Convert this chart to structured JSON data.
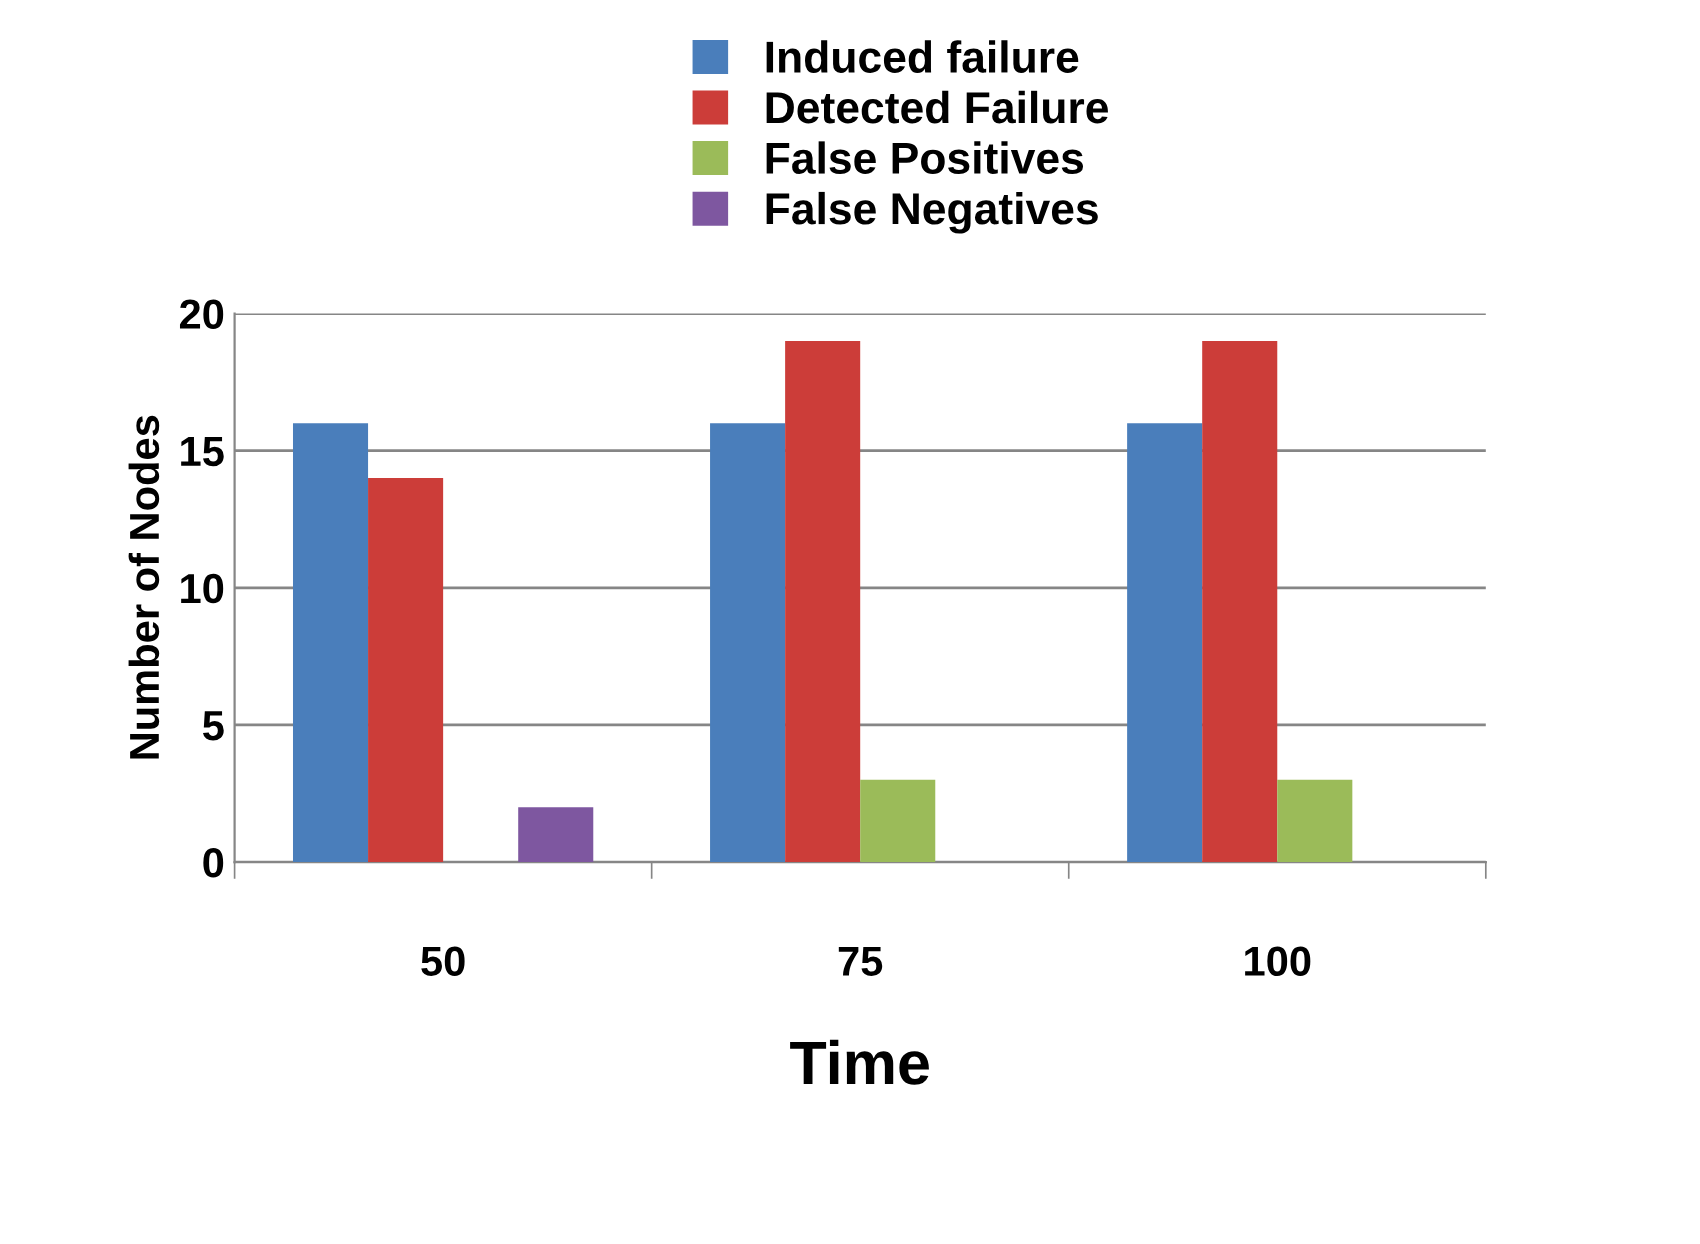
{
  "chart_data": {
    "type": "bar",
    "xlabel": "Time",
    "ylabel": "Number of Nodes",
    "categories": [
      "50",
      "75",
      "100"
    ],
    "series": [
      {
        "name": "Induced failure",
        "color": "#4a7ebb",
        "values": [
          16,
          16,
          16
        ]
      },
      {
        "name": "Detected Failure",
        "color": "#cc3d39",
        "values": [
          14,
          19,
          19
        ]
      },
      {
        "name": "False Positives",
        "color": "#9bbb59",
        "values": [
          0,
          3,
          3
        ]
      },
      {
        "name": "False Negatives",
        "color": "#7e57a0",
        "values": [
          2,
          0,
          0
        ]
      }
    ],
    "ylim": [
      0,
      20
    ],
    "yticks": [
      0,
      5,
      10,
      15,
      20
    ],
    "grid": "y",
    "legend": "top"
  }
}
